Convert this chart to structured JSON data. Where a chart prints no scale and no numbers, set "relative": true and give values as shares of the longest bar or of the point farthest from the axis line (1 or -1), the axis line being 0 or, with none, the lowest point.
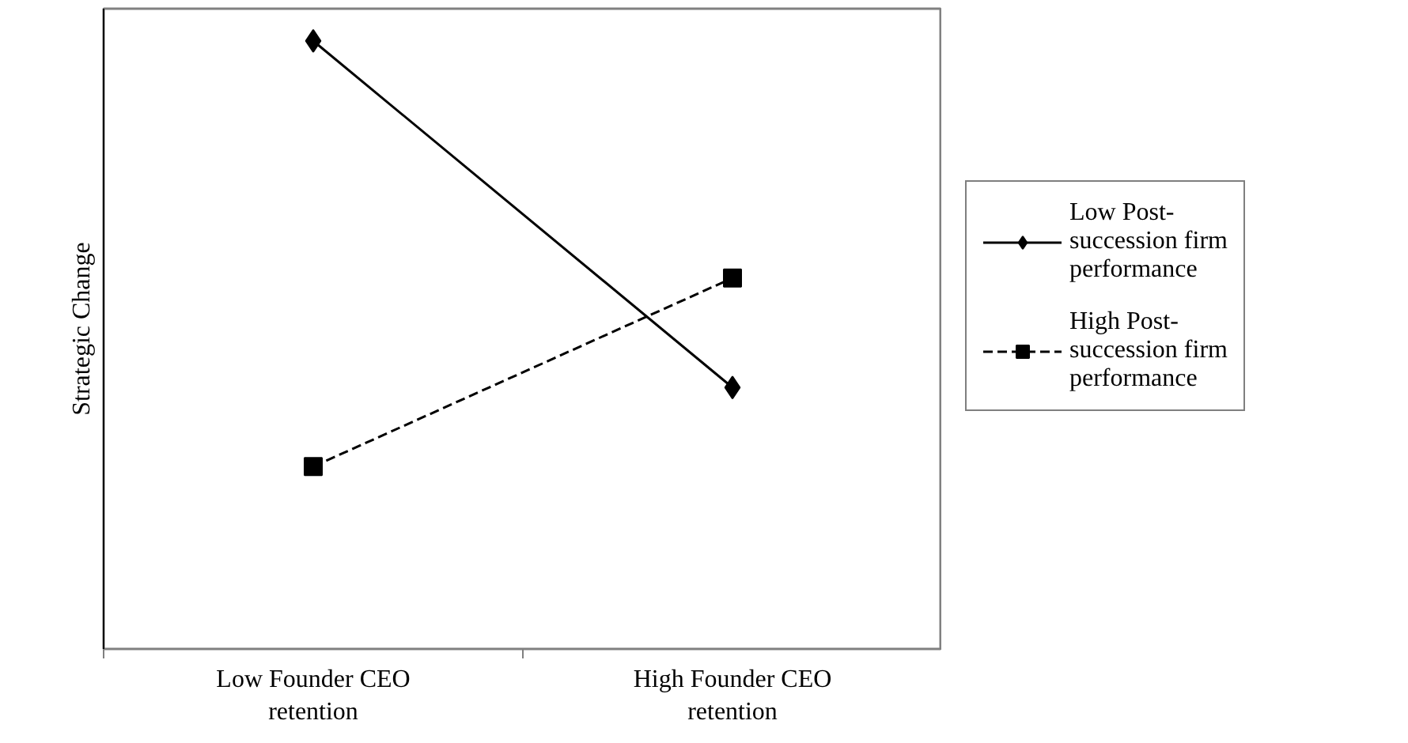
{
  "chart_data": {
    "type": "line",
    "ylabel": "Strategic Change",
    "relative": true,
    "categories": [
      "Low Founder CEO retention",
      "High Founder CEO retention"
    ],
    "legend": "right",
    "grid": false,
    "series": [
      {
        "name": "Low Post-succession firm performance",
        "color": "#000000",
        "values": [
          1,
          0.43
        ],
        "marker": "diamond",
        "line_style": "solid"
      },
      {
        "name": "High Post-succession firm performance",
        "color": "#000000",
        "values": [
          0.3,
          0.61
        ],
        "marker": "square",
        "line_style": "dashed"
      }
    ]
  }
}
